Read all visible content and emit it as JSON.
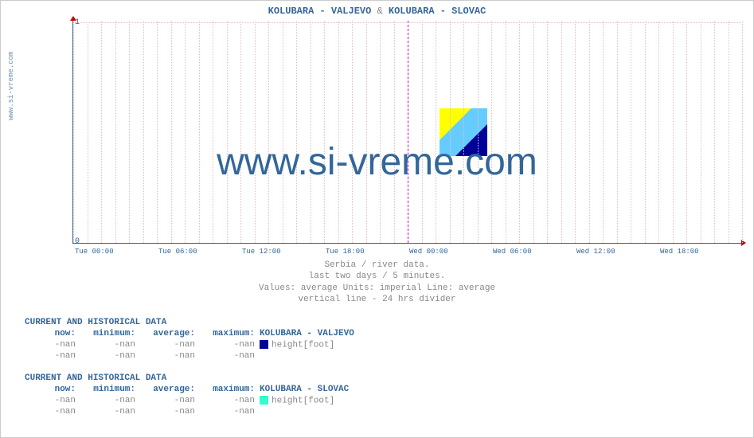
{
  "site_label": "www.si-vreme.com",
  "chart": {
    "type": "line",
    "title_parts": [
      "KOLUBARA -  VALJEVO",
      " & ",
      "KOLUBARA -  SLOVAC"
    ],
    "title_color": "#336699",
    "background_color": "#ffffff",
    "axis_color": "#336699",
    "grid_color": "#e0c0c0",
    "divider_color": "#cc00cc",
    "arrow_color": "#cc0000",
    "ylim": [
      0,
      1
    ],
    "yticks": [
      0,
      1
    ],
    "xticks": [
      "Tue 00:00",
      "Tue 06:00",
      "Tue 12:00",
      "Tue 18:00",
      "Wed 00:00",
      "Wed 06:00",
      "Wed 12:00",
      "Wed 18:00"
    ],
    "xtick_count": 8,
    "divider_minor_count": 48,
    "divider_major_at_index": 24,
    "watermark_text": "www.si-vreme.com",
    "watermark_color": "#336699",
    "logo_colors": {
      "yellow": "#ffff00",
      "darkblue": "#000099",
      "skyblue": "#66ccff"
    }
  },
  "caption": {
    "line1": "Serbia / river data.",
    "line2": "last two days / 5 minutes.",
    "line3": "Values: average  Units: imperial  Line: average",
    "line4": "vertical line - 24 hrs  divider",
    "color": "#888888"
  },
  "tables": [
    {
      "header": "CURRENT AND HISTORICAL DATA",
      "columns": [
        "now:",
        "minimum:",
        "average:",
        "maximum:"
      ],
      "series_name": "KOLUBARA -  VALJEVO",
      "swatch_color": "#000099",
      "param": "height[foot]",
      "rows": [
        [
          "-nan",
          "-nan",
          "-nan",
          "-nan"
        ],
        [
          "-nan",
          "-nan",
          "-nan",
          "-nan"
        ]
      ]
    },
    {
      "header": "CURRENT AND HISTORICAL DATA",
      "columns": [
        "now:",
        "minimum:",
        "average:",
        "maximum:"
      ],
      "series_name": "KOLUBARA -  SLOVAC",
      "swatch_color": "#33ffcc",
      "param": "height[foot]",
      "rows": [
        [
          "-nan",
          "-nan",
          "-nan",
          "-nan"
        ],
        [
          "-nan",
          "-nan",
          "-nan",
          "-nan"
        ]
      ]
    }
  ]
}
